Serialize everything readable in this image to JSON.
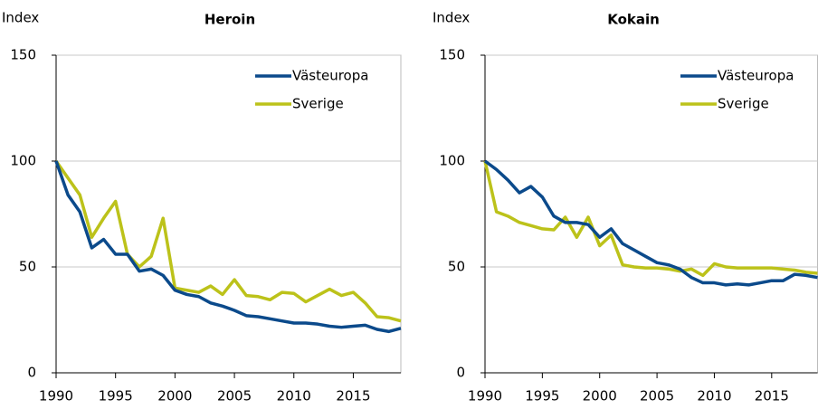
{
  "chart_data": [
    {
      "type": "line",
      "title": "Heroin",
      "y_label": "Index",
      "x": [
        1990,
        1991,
        1992,
        1993,
        1994,
        1995,
        1996,
        1997,
        1998,
        1999,
        2000,
        2001,
        2002,
        2003,
        2004,
        2005,
        2006,
        2007,
        2008,
        2009,
        2010,
        2011,
        2012,
        2013,
        2014,
        2015,
        2016,
        2017,
        2018,
        2019
      ],
      "series": [
        {
          "name": "Västeuropa",
          "color": "#0b4a8b",
          "values": [
            100,
            84,
            76,
            59,
            63,
            56,
            56,
            48,
            49,
            46,
            39,
            37,
            36,
            33,
            31.5,
            29.5,
            27,
            26.5,
            25.5,
            24.5,
            23.5,
            23.5,
            23,
            22,
            21.5,
            22,
            22.5,
            20.5,
            19.5,
            21
          ]
        },
        {
          "name": "Sverige",
          "color": "#bcc21a",
          "values": [
            100,
            92,
            84,
            64,
            73,
            81,
            56,
            50,
            55,
            73,
            40,
            39,
            38,
            41,
            37,
            44,
            36.5,
            36,
            34.5,
            38,
            37.5,
            33.5,
            36.5,
            39.5,
            36.5,
            38,
            33,
            26.5,
            26,
            24.5
          ]
        }
      ],
      "xlim": [
        1990,
        2019
      ],
      "xticks": [
        1990,
        1995,
        2000,
        2005,
        2010,
        2015
      ],
      "ylim": [
        0,
        150
      ],
      "yticks": [
        0,
        50,
        100,
        150
      ],
      "grid": true,
      "legend": "upper right"
    },
    {
      "type": "line",
      "title": "Kokain",
      "y_label": "Index",
      "x": [
        1990,
        1991,
        1992,
        1993,
        1994,
        1995,
        1996,
        1997,
        1998,
        1999,
        2000,
        2001,
        2002,
        2003,
        2004,
        2005,
        2006,
        2007,
        2008,
        2009,
        2010,
        2011,
        2012,
        2013,
        2014,
        2015,
        2016,
        2017,
        2018,
        2019
      ],
      "series": [
        {
          "name": "Västeuropa",
          "color": "#0b4a8b",
          "values": [
            100,
            96,
            91,
            85,
            88,
            83,
            74,
            71,
            71,
            70,
            64,
            68,
            61,
            58,
            55,
            52,
            51,
            49,
            45,
            42.5,
            42.5,
            41.5,
            42,
            41.5,
            42.5,
            43.5,
            43.5,
            46.5,
            46,
            45
          ]
        },
        {
          "name": "Sverige",
          "color": "#bcc21a",
          "values": [
            100,
            76,
            74,
            71,
            69.5,
            68,
            67.5,
            73.5,
            64,
            73.5,
            60,
            65,
            51,
            50,
            49.5,
            49.5,
            49,
            48,
            49,
            46,
            51.5,
            50,
            49.5,
            49.5,
            49.5,
            49.5,
            49,
            48.5,
            47.5,
            47
          ]
        }
      ],
      "xlim": [
        1990,
        2019
      ],
      "xticks": [
        1990,
        1995,
        2000,
        2005,
        2010,
        2015
      ],
      "ylim": [
        0,
        150
      ],
      "yticks": [
        0,
        50,
        100,
        150
      ],
      "grid": true,
      "legend": "upper right"
    }
  ]
}
